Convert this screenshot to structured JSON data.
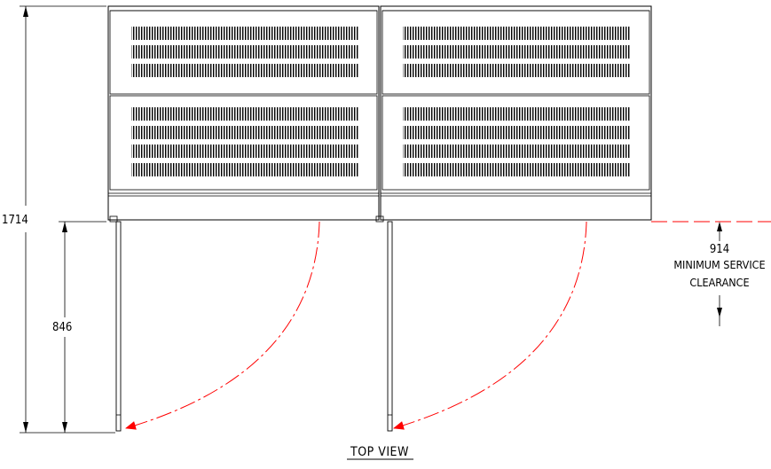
{
  "drawing": {
    "view_title": "TOP VIEW",
    "dimensions": {
      "overall_depth": "1714",
      "door_swing": "846",
      "service_clearance_value": "914",
      "service_clearance_line1": "MINIMUM SERVICE",
      "service_clearance_line2": "CLEARANCE"
    },
    "cabinets": [
      {
        "panels": [
          {
            "vent_rows": 3
          },
          {
            "vent_rows": 4
          }
        ]
      },
      {
        "panels": [
          {
            "vent_rows": 3
          },
          {
            "vent_rows": 4
          }
        ]
      }
    ],
    "doors": 2,
    "colors": {
      "line": "#000000",
      "swing_arc": "#ff0000"
    }
  }
}
